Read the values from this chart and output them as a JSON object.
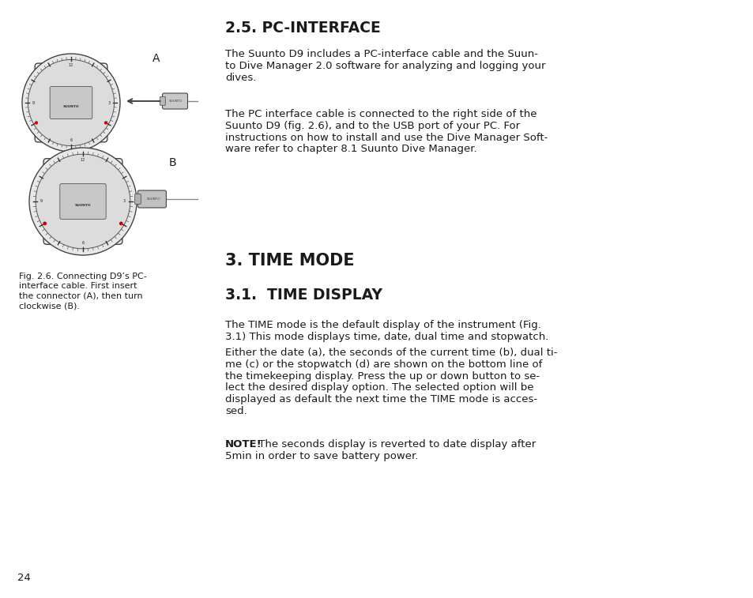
{
  "bg_color": "#ffffff",
  "page_number": "24",
  "section_25_title": "2.5. PC-INTERFACE",
  "section_25_p1_lines": [
    "The Suunto D9 includes a PC-interface cable and the Suun-",
    "to Dive Manager 2.0 software for analyzing and logging your",
    "dives."
  ],
  "section_25_p2_lines": [
    "The PC interface cable is connected to the right side of the",
    "Suunto D9 (fig. 2.6), and to the USB port of your PC. For",
    "instructions on how to install and use the Dive Manager Soft-",
    "ware refer to chapter 8.1 Suunto Dive Manager."
  ],
  "section_3_title": "3. TIME MODE",
  "section_31_title": "3.1.  TIME DISPLAY",
  "section_31_p1_lines": [
    "The TIME mode is the default display of the instrument (Fig.",
    "3.1) This mode displays time, date, dual time and stopwatch."
  ],
  "section_31_p2_lines": [
    "Either the date (a), the seconds of the current time (b), dual ti-",
    "me (c) or the stopwatch (d) are shown on the bottom line of",
    "the timekeeping display. Press the up or down button to se-",
    "lect the desired display option. The selected option will be",
    "displayed as default the next time the TIME mode is acces-",
    "sed."
  ],
  "section_31_note_bold": "NOTE!",
  "section_31_note_rest_lines": [
    " The seconds display is reverted to date display after",
    "5min in order to save battery power."
  ],
  "fig_caption_lines": [
    "Fig. 2.6. Connecting D9’s PC-",
    "interface cable. First insert",
    "the connector (A), then turn",
    "clockwise (B)."
  ],
  "label_A": "A",
  "label_B": "B",
  "text_color": "#1a1a1a",
  "body_fontsize": 9.5,
  "title_25_fontsize": 13.5,
  "title_3_fontsize": 15.0,
  "title_31_fontsize": 13.5,
  "caption_fontsize": 8.0,
  "page_num_fontsize": 9.5
}
